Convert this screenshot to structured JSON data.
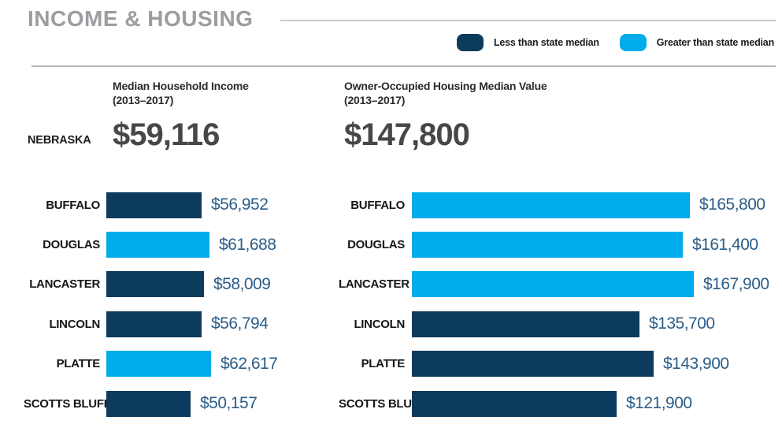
{
  "title": "INCOME & HOUSING",
  "legend": {
    "below": {
      "label": "Less than state median",
      "color": "#0D3B5D"
    },
    "above": {
      "label": "Greater than state median",
      "color": "#00ACEB"
    }
  },
  "state_row": {
    "state_label": "NEBRASKA",
    "income": {
      "heading_line1": "Median Household Income",
      "heading_line2": "(2013–2017)",
      "value": "$59,116"
    },
    "housing": {
      "heading_line1": "Owner-Occupied Housing Median Value",
      "heading_line2": "(2013–2017)",
      "value": "$147,800"
    }
  },
  "chart_data": [
    {
      "type": "bar",
      "orientation": "horizontal",
      "title": "Median Household Income (2013–2017)",
      "state": "Nebraska",
      "state_median": 59116,
      "state_median_label": "$59,116",
      "categories": [
        "BUFFALO",
        "DOUGLAS",
        "LANCASTER",
        "LINCOLN",
        "PLATTE",
        "SCOTTS BLUFF"
      ],
      "values": [
        56952,
        61688,
        58009,
        56794,
        62617,
        50157
      ],
      "value_labels": [
        "$56,952",
        "$61,688",
        "$58,009",
        "$56,794",
        "$62,617",
        "$50,157"
      ],
      "xlim": [
        0,
        170000
      ],
      "grid": false,
      "axes_visible": false,
      "color_rule": "bar is light blue when value is greater than state median, dark navy when less"
    },
    {
      "type": "bar",
      "orientation": "horizontal",
      "title": "Owner-Occupied Housing Median Value (2013–2017)",
      "state": "Nebraska",
      "state_median": 147800,
      "state_median_label": "$147,800",
      "categories": [
        "BUFFALO",
        "DOUGLAS",
        "LANCASTER",
        "LINCOLN",
        "PLATTE",
        "SCOTTS BLUFF"
      ],
      "values": [
        165800,
        161400,
        167900,
        135700,
        143900,
        121900
      ],
      "value_labels": [
        "$165,800",
        "$161,400",
        "$167,900",
        "$135,700",
        "$143,900",
        "$121,900"
      ],
      "xlim": [
        0,
        170000
      ],
      "grid": false,
      "axes_visible": false,
      "color_rule": "bar is light blue when value is greater than state median, dark navy when less"
    }
  ]
}
